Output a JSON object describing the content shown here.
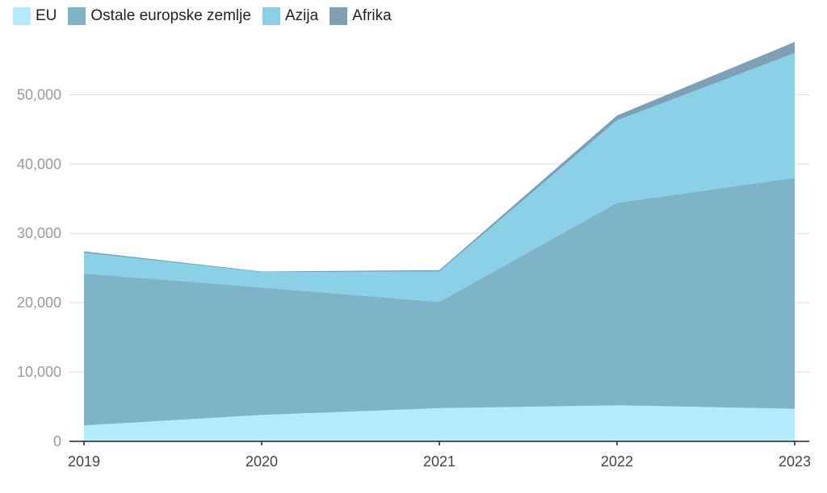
{
  "chart_data": {
    "type": "area",
    "stacked": true,
    "x": [
      "2019",
      "2020",
      "2021",
      "2022",
      "2023"
    ],
    "series": [
      {
        "name": "EU",
        "color": "#b3eafd",
        "values": [
          2300,
          3800,
          4800,
          5200,
          4700
        ]
      },
      {
        "name": "Ostale europske zemlje",
        "color": "#7fb3c8",
        "values": [
          21900,
          18400,
          15300,
          29200,
          33300
        ]
      },
      {
        "name": "Azija",
        "color": "#8ad1e8",
        "values": [
          3000,
          2200,
          4400,
          11900,
          18000
        ]
      },
      {
        "name": "Afrika",
        "color": "#7f9fb5",
        "values": [
          200,
          100,
          200,
          700,
          1600
        ]
      }
    ],
    "ylim": [
      0,
      57600
    ],
    "yticks": [
      0,
      10000,
      20000,
      30000,
      40000,
      50000
    ],
    "ytick_labels": [
      "0",
      "10,000",
      "20,000",
      "30,000",
      "40,000",
      "50,000"
    ],
    "grid": true,
    "legend_position": "top-left",
    "xlabel": "",
    "ylabel": ""
  }
}
